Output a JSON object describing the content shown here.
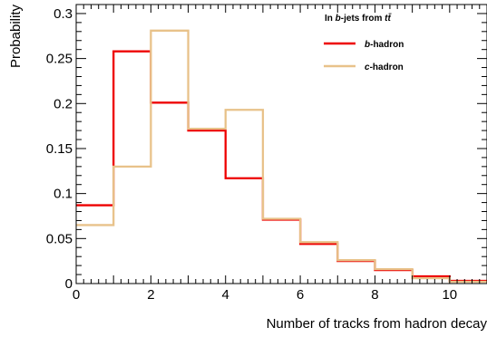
{
  "chart_data": {
    "type": "histogram",
    "xlabel": "Number of tracks from hadron decay",
    "ylabel": "Probability",
    "xlim": [
      0,
      11
    ],
    "ylim": [
      0,
      0.31
    ],
    "x_ticks": [
      0,
      2,
      4,
      6,
      8,
      10
    ],
    "x_tick_labels": [
      "0",
      "2",
      "4",
      "6",
      "8",
      "10"
    ],
    "y_ticks": [
      0,
      0.05,
      0.1,
      0.15,
      0.2,
      0.25,
      0.3
    ],
    "y_tick_labels": [
      "0",
      "0.05",
      "0.1",
      "0.15",
      "0.2",
      "0.25",
      "0.3"
    ],
    "bin_edges": [
      0,
      1,
      2,
      3,
      4,
      5,
      6,
      7,
      8,
      9,
      10,
      11
    ],
    "legend": {
      "title_prefix": "In ",
      "title_b": "b",
      "title_mid": "-jets from ",
      "title_tt": "tt̄",
      "placement": "top-right"
    },
    "series": [
      {
        "name_italic": "b",
        "name_rest": "-hadron",
        "color": "#ee0000",
        "values": [
          0.087,
          0.258,
          0.201,
          0.17,
          0.117,
          0.071,
          0.044,
          0.025,
          0.015,
          0.008,
          0.003
        ]
      },
      {
        "name_italic": "c",
        "name_rest": "-hadron",
        "color": "#e8c28a",
        "values": [
          0.065,
          0.13,
          0.281,
          0.172,
          0.193,
          0.072,
          0.046,
          0.026,
          0.016,
          0.006,
          0.002
        ]
      }
    ]
  }
}
